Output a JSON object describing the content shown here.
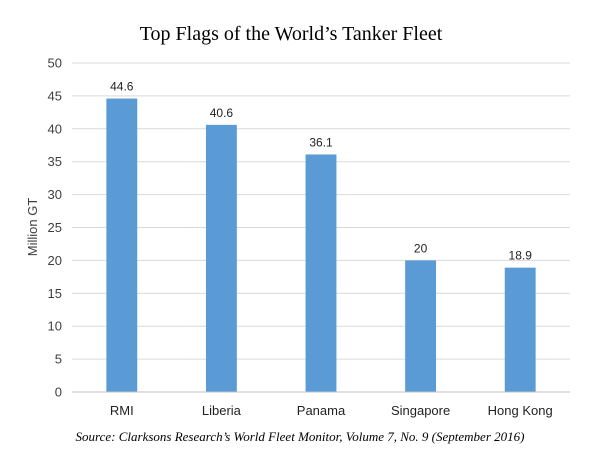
{
  "chart_data": {
    "type": "bar",
    "title": "Top Flags of the World’s Tanker Fleet",
    "ylabel": "Million GT",
    "xlabel": "",
    "categories": [
      "RMI",
      "Liberia",
      "Panama",
      "Singapore",
      "Hong Kong"
    ],
    "values": [
      44.6,
      40.6,
      36.1,
      20,
      18.9
    ],
    "value_labels": [
      "44.6",
      "40.6",
      "36.1",
      "20",
      "18.9"
    ],
    "ylim": [
      0,
      50
    ],
    "yticks": [
      "0",
      "5",
      "10",
      "15",
      "20",
      "25",
      "30",
      "35",
      "40",
      "45",
      "50"
    ],
    "grid": "horizontal",
    "bar_color": "#5b9bd5",
    "source": "Source: Clarksons Research’s World Fleet Monitor, Volume 7, No. 9 (September 2016)"
  }
}
